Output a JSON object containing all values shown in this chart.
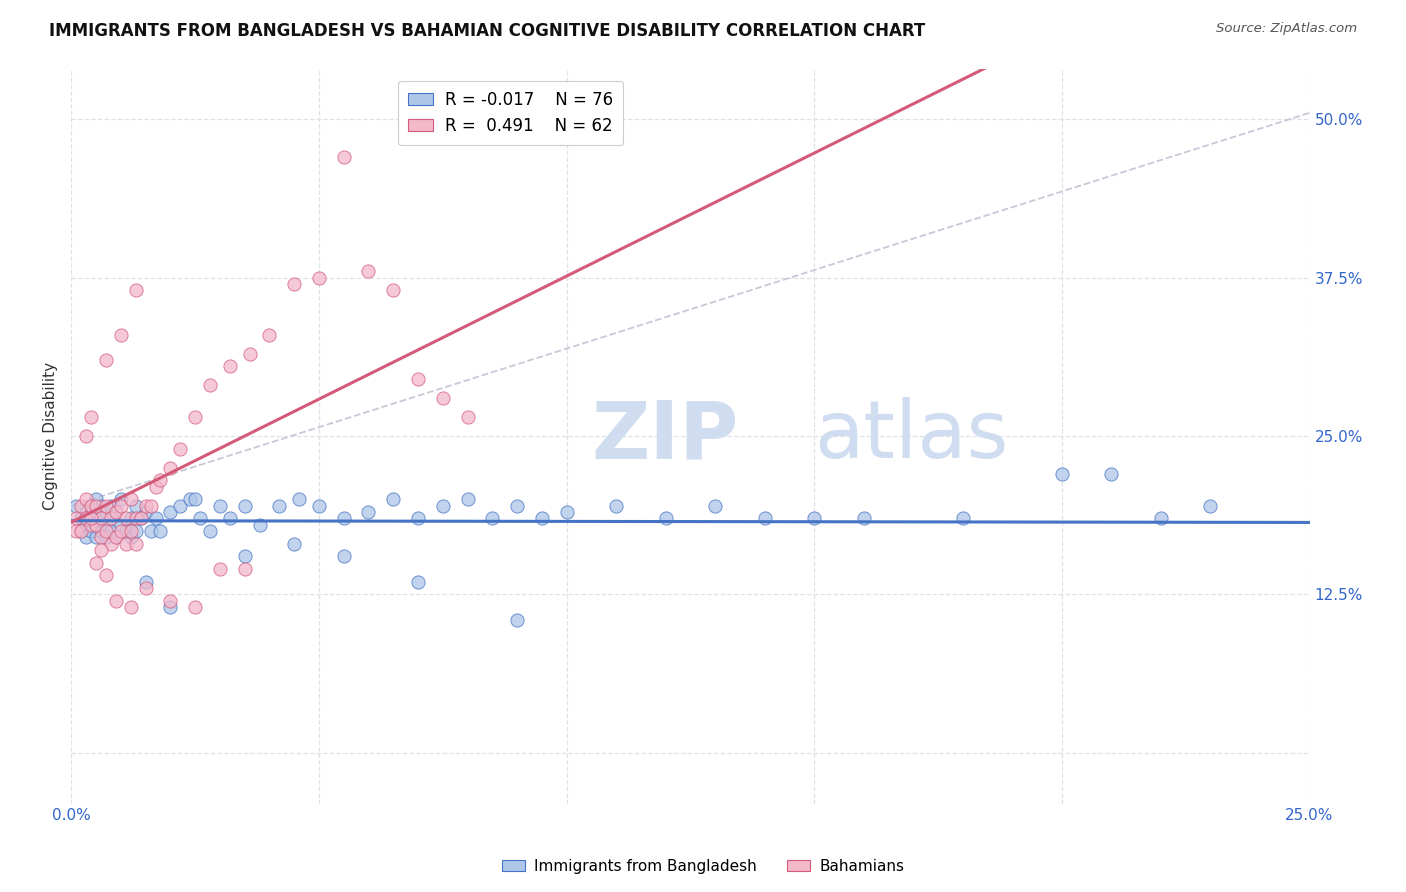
{
  "title": "IMMIGRANTS FROM BANGLADESH VS BAHAMIAN COGNITIVE DISABILITY CORRELATION CHART",
  "source": "Source: ZipAtlas.com",
  "ylabel_label": "Cognitive Disability",
  "x_ticks": [
    0.0,
    0.05,
    0.1,
    0.15,
    0.2,
    0.25
  ],
  "x_tick_labels_show": [
    "0.0%",
    "",
    "",
    "",
    "",
    "25.0%"
  ],
  "y_ticks": [
    0.0,
    0.125,
    0.25,
    0.375,
    0.5
  ],
  "y_tick_labels_right": [
    "",
    "12.5%",
    "25.0%",
    "37.5%",
    "50.0%"
  ],
  "xlim": [
    0.0,
    0.25
  ],
  "ylim": [
    -0.04,
    0.54
  ],
  "legend_R_blue": "-0.017",
  "legend_N_blue": "76",
  "legend_R_pink": "0.491",
  "legend_N_pink": "62",
  "blue_fill": "#aec6e8",
  "blue_edge": "#4472c4",
  "pink_fill": "#f4b8cb",
  "pink_edge": "#d45a7a",
  "blue_line": "#4472c4",
  "pink_line": "#d45a7a",
  "dashed_color": "#c8c8d8",
  "watermark_color": "#d0ddf0",
  "background": "#ffffff",
  "grid_color": "#e0e0e8",
  "blue_x": [
    0.001,
    0.002,
    0.002,
    0.003,
    0.003,
    0.003,
    0.004,
    0.004,
    0.004,
    0.005,
    0.005,
    0.005,
    0.005,
    0.006,
    0.006,
    0.006,
    0.007,
    0.007,
    0.007,
    0.008,
    0.008,
    0.009,
    0.009,
    0.01,
    0.01,
    0.011,
    0.012,
    0.012,
    0.013,
    0.013,
    0.014,
    0.015,
    0.016,
    0.017,
    0.018,
    0.02,
    0.022,
    0.024,
    0.026,
    0.028,
    0.03,
    0.032,
    0.035,
    0.038,
    0.042,
    0.046,
    0.05,
    0.055,
    0.06,
    0.065,
    0.07,
    0.075,
    0.08,
    0.085,
    0.09,
    0.095,
    0.1,
    0.11,
    0.12,
    0.13,
    0.14,
    0.15,
    0.16,
    0.18,
    0.2,
    0.21,
    0.22,
    0.23,
    0.015,
    0.02,
    0.025,
    0.035,
    0.045,
    0.055,
    0.07,
    0.09
  ],
  "blue_y": [
    0.195,
    0.185,
    0.175,
    0.19,
    0.18,
    0.17,
    0.195,
    0.185,
    0.175,
    0.2,
    0.19,
    0.18,
    0.17,
    0.195,
    0.185,
    0.175,
    0.19,
    0.18,
    0.17,
    0.195,
    0.175,
    0.19,
    0.17,
    0.2,
    0.18,
    0.175,
    0.185,
    0.17,
    0.195,
    0.175,
    0.185,
    0.19,
    0.175,
    0.185,
    0.175,
    0.19,
    0.195,
    0.2,
    0.185,
    0.175,
    0.195,
    0.185,
    0.195,
    0.18,
    0.195,
    0.2,
    0.195,
    0.185,
    0.19,
    0.2,
    0.185,
    0.195,
    0.2,
    0.185,
    0.195,
    0.185,
    0.19,
    0.195,
    0.185,
    0.195,
    0.185,
    0.185,
    0.185,
    0.185,
    0.22,
    0.22,
    0.185,
    0.195,
    0.135,
    0.115,
    0.2,
    0.155,
    0.165,
    0.155,
    0.135,
    0.105
  ],
  "pink_x": [
    0.001,
    0.001,
    0.002,
    0.002,
    0.003,
    0.003,
    0.004,
    0.004,
    0.005,
    0.005,
    0.006,
    0.006,
    0.007,
    0.007,
    0.008,
    0.008,
    0.009,
    0.009,
    0.01,
    0.01,
    0.011,
    0.011,
    0.012,
    0.012,
    0.013,
    0.013,
    0.014,
    0.015,
    0.016,
    0.017,
    0.018,
    0.02,
    0.022,
    0.025,
    0.028,
    0.032,
    0.036,
    0.04,
    0.045,
    0.05,
    0.055,
    0.06,
    0.065,
    0.07,
    0.075,
    0.08,
    0.007,
    0.009,
    0.012,
    0.015,
    0.02,
    0.025,
    0.03,
    0.035,
    0.003,
    0.004,
    0.004,
    0.005,
    0.006,
    0.007,
    0.01,
    0.013
  ],
  "pink_y": [
    0.185,
    0.175,
    0.195,
    0.175,
    0.2,
    0.185,
    0.195,
    0.18,
    0.195,
    0.18,
    0.185,
    0.17,
    0.195,
    0.175,
    0.185,
    0.165,
    0.19,
    0.17,
    0.195,
    0.175,
    0.185,
    0.165,
    0.2,
    0.175,
    0.185,
    0.165,
    0.185,
    0.195,
    0.195,
    0.21,
    0.215,
    0.225,
    0.24,
    0.265,
    0.29,
    0.305,
    0.315,
    0.33,
    0.37,
    0.375,
    0.47,
    0.38,
    0.365,
    0.295,
    0.28,
    0.265,
    0.14,
    0.12,
    0.115,
    0.13,
    0.12,
    0.115,
    0.145,
    0.145,
    0.25,
    0.265,
    0.185,
    0.15,
    0.16,
    0.31,
    0.33,
    0.365
  ]
}
